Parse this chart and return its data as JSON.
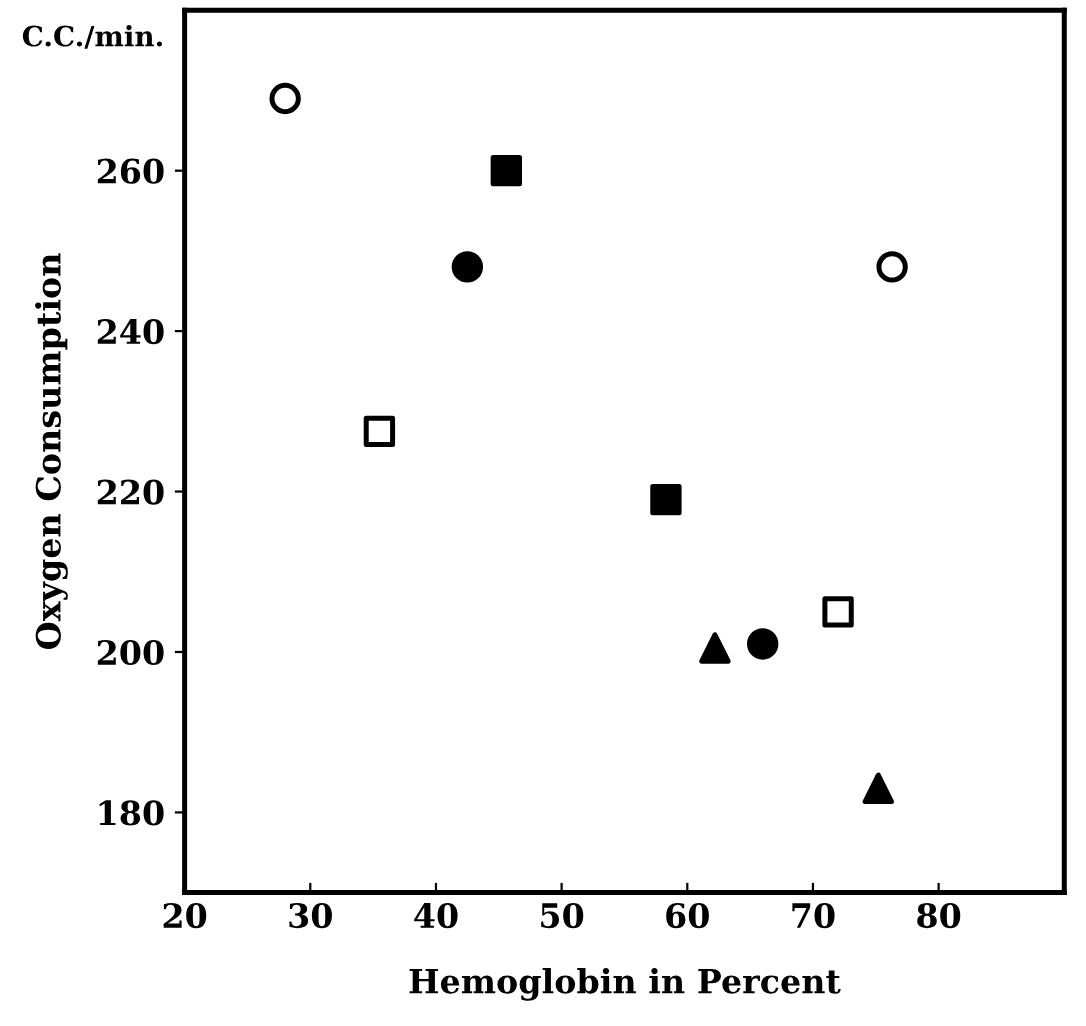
{
  "chart_data": {
    "type": "scatter",
    "xlabel": "Hemoglobin in Percent",
    "ylabel": "Oxygen Consumption",
    "annotations": [
      "C.C./min."
    ],
    "series": [
      {
        "marker": "circle",
        "color": "#ffffff",
        "x": [
          28,
          76.3
        ],
        "values": [
          269,
          248
        ]
      },
      {
        "marker": "circle",
        "color": "#000000",
        "x": [
          42.5,
          66
        ],
        "values": [
          248,
          201
        ]
      },
      {
        "marker": "square",
        "color": "#ffffff",
        "x": [
          35.5,
          72
        ],
        "values": [
          227.5,
          205
        ]
      },
      {
        "marker": "square",
        "color": "#000000",
        "x": [
          45.6,
          58.3
        ],
        "values": [
          260,
          219
        ]
      },
      {
        "marker": "triangle",
        "color": "#000000",
        "x": [
          62.2,
          75.2
        ],
        "values": [
          200.5,
          183
        ]
      }
    ],
    "xlim": [
      20,
      90
    ],
    "ylim": [
      170,
      280
    ],
    "xticks": [
      20,
      30,
      40,
      50,
      60,
      70,
      80
    ],
    "yticks": [
      180,
      200,
      220,
      240,
      260
    ],
    "grid": false,
    "legend": false
  }
}
